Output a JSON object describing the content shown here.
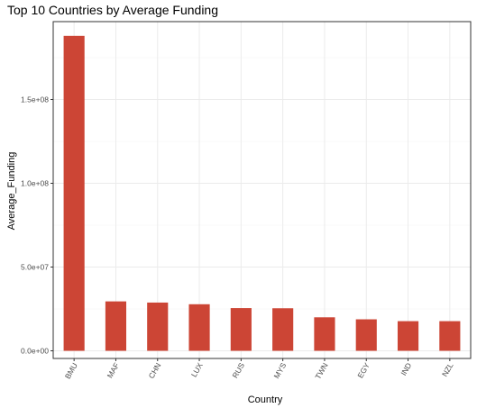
{
  "chart_data": {
    "type": "bar",
    "title": "Top 10 Countries by Average Funding",
    "xlabel": "Country",
    "ylabel": "Average_Funding",
    "categories": [
      "BMU",
      "MAF",
      "CHN",
      "LUX",
      "RUS",
      "MYS",
      "TWN",
      "EGY",
      "IND",
      "NZL"
    ],
    "values": [
      188000000,
      29500000,
      28800000,
      27800000,
      25500000,
      25400000,
      20000000,
      18800000,
      17700000,
      17700000
    ],
    "ylim": [
      0,
      200000000
    ],
    "yticks": [
      0,
      50000000,
      100000000,
      150000000
    ],
    "ytick_labels": [
      "0.0e+00",
      "5.0e+07",
      "1.0e+08",
      "1.5e+08"
    ],
    "grid": true,
    "legend": "none",
    "bar_color": "#cc4535",
    "grid_color": "#ebebeb",
    "border_color": "#333333"
  }
}
